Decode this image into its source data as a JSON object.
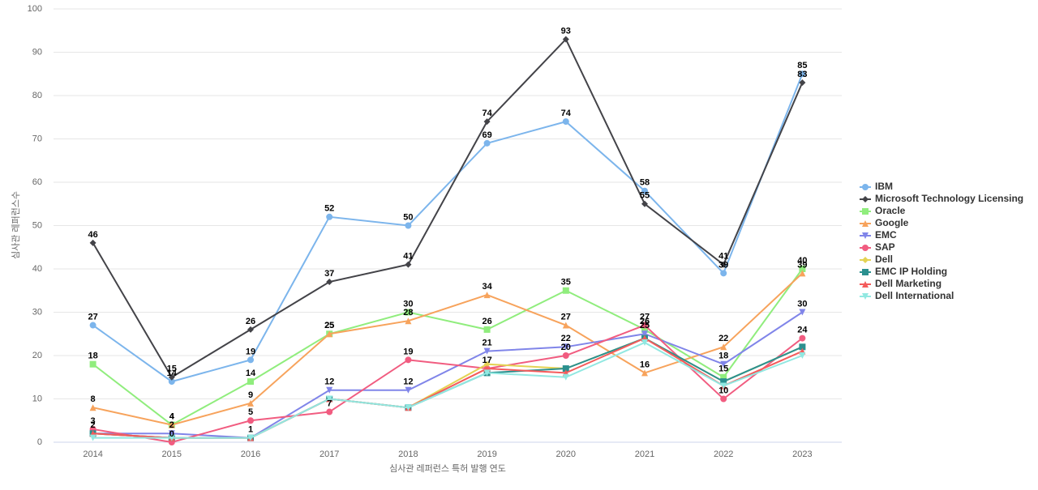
{
  "chart_data": {
    "type": "line",
    "x_label": "심사관 레퍼런스 특허 발행 연도",
    "y_label": "심사관 레퍼런스수",
    "categories": [
      "2014",
      "2015",
      "2016",
      "2017",
      "2018",
      "2019",
      "2020",
      "2021",
      "2022",
      "2023"
    ],
    "ylim": [
      0,
      100
    ],
    "yticks": [
      0,
      10,
      20,
      30,
      40,
      50,
      60,
      70,
      80,
      90,
      100
    ],
    "grid": true,
    "legend": "right",
    "series": [
      {
        "name": "IBM",
        "color": "#7cb5ec",
        "values": [
          27,
          14,
          19,
          52,
          50,
          69,
          74,
          58,
          39,
          85
        ],
        "data_labels": true
      },
      {
        "name": "Microsoft Technology Licensing",
        "color": "#434348",
        "values": [
          46,
          15,
          26,
          37,
          41,
          74,
          93,
          55,
          41,
          83
        ],
        "data_labels": true
      },
      {
        "name": "Oracle",
        "color": "#90ed7d",
        "values": [
          18,
          4,
          14,
          25,
          30,
          26,
          35,
          26,
          15,
          40
        ],
        "data_labels": true
      },
      {
        "name": "Google",
        "color": "#f7a35c",
        "values": [
          8,
          4,
          9,
          25,
          28,
          34,
          27,
          16,
          22,
          39
        ],
        "data_labels": true
      },
      {
        "name": "EMC",
        "color": "#8085e9",
        "values": [
          2,
          2,
          1,
          12,
          12,
          21,
          22,
          25,
          18,
          30
        ],
        "data_labels": true
      },
      {
        "name": "SAP",
        "color": "#f15c80",
        "values": [
          3,
          0,
          5,
          7,
          19,
          17,
          20,
          27,
          10,
          24
        ],
        "data_labels": true
      },
      {
        "name": "Dell",
        "color": "#e4d354",
        "values": [
          2,
          1,
          1,
          10,
          8,
          18,
          17,
          24,
          14,
          22
        ],
        "data_labels": false
      },
      {
        "name": "EMC IP Holding",
        "color": "#2b908f",
        "values": [
          2,
          1,
          1,
          10,
          8,
          16,
          17,
          24,
          14,
          22
        ],
        "data_labels": false
      },
      {
        "name": "Dell Marketing",
        "color": "#f45b5b",
        "values": [
          2,
          1,
          1,
          10,
          8,
          17,
          16,
          24,
          13,
          21
        ],
        "data_labels": false
      },
      {
        "name": "Dell International",
        "color": "#91e8e1",
        "values": [
          1,
          1,
          1,
          10,
          8,
          16,
          15,
          23,
          13,
          20
        ],
        "data_labels": false
      }
    ]
  }
}
